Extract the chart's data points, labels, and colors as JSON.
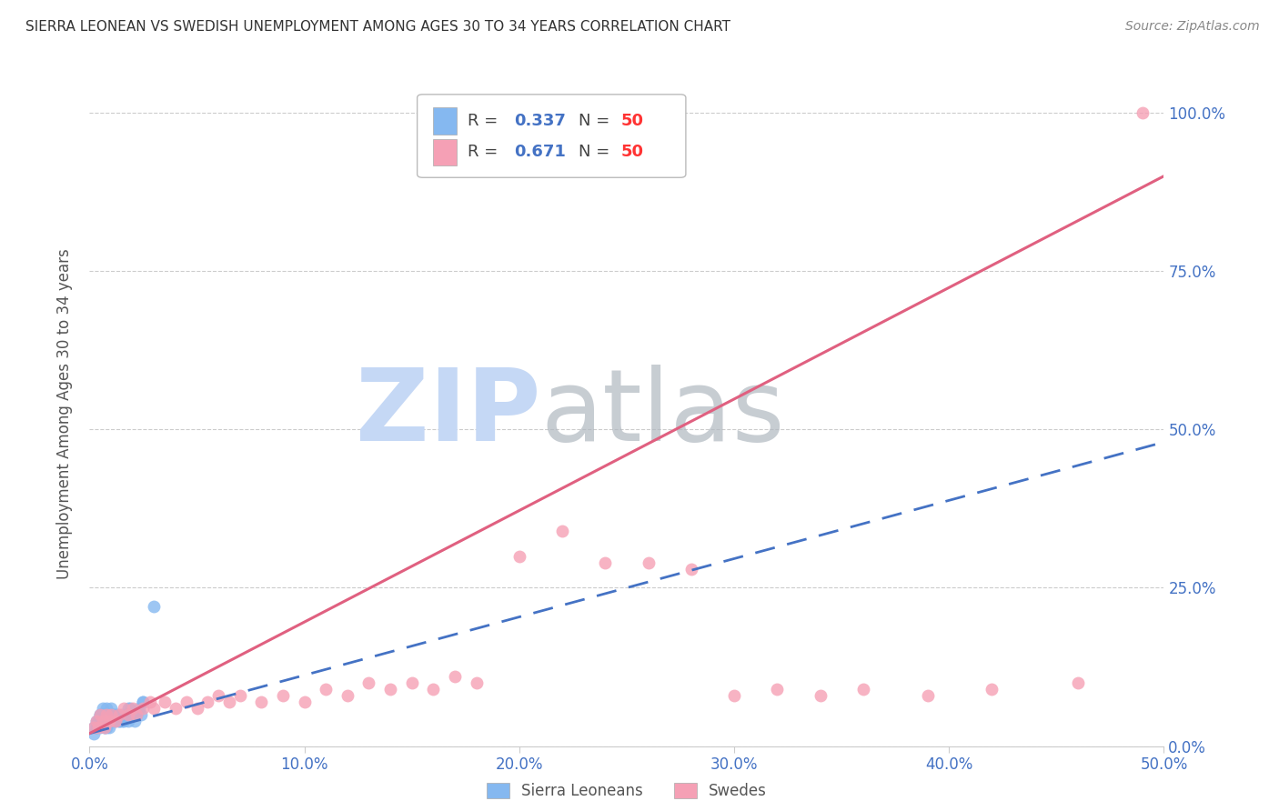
{
  "title": "SIERRA LEONEAN VS SWEDISH UNEMPLOYMENT AMONG AGES 30 TO 34 YEARS CORRELATION CHART",
  "source": "Source: ZipAtlas.com",
  "ylabel": "Unemployment Among Ages 30 to 34 years",
  "xlim": [
    0.0,
    0.5
  ],
  "ylim": [
    0.0,
    1.05
  ],
  "ytick_labels": [
    "0.0%",
    "25.0%",
    "50.0%",
    "75.0%",
    "100.0%"
  ],
  "ytick_values": [
    0.0,
    0.25,
    0.5,
    0.75,
    1.0
  ],
  "xtick_labels": [
    "0.0%",
    "10.0%",
    "20.0%",
    "30.0%",
    "40.0%",
    "50.0%"
  ],
  "xtick_values": [
    0.0,
    0.1,
    0.2,
    0.3,
    0.4,
    0.5
  ],
  "sl_color": "#85b8f0",
  "sw_color": "#f5a0b5",
  "sl_line_color": "#4472c4",
  "sw_line_color": "#e06080",
  "watermark_zip_color": "#c5d8f5",
  "watermark_atlas_color": "#b0b8c0",
  "sl_scatter_x": [
    0.002,
    0.003,
    0.004,
    0.005,
    0.005,
    0.006,
    0.006,
    0.007,
    0.007,
    0.008,
    0.008,
    0.009,
    0.009,
    0.01,
    0.01,
    0.011,
    0.012,
    0.013,
    0.014,
    0.015,
    0.016,
    0.017,
    0.018,
    0.019,
    0.02,
    0.021,
    0.022,
    0.023,
    0.024,
    0.025,
    0.003,
    0.004,
    0.006,
    0.008,
    0.01,
    0.012,
    0.015,
    0.018,
    0.021,
    0.025,
    0.003,
    0.005,
    0.007,
    0.009,
    0.011,
    0.014,
    0.002,
    0.004,
    0.006,
    0.03
  ],
  "sl_scatter_y": [
    0.02,
    0.03,
    0.04,
    0.03,
    0.05,
    0.04,
    0.06,
    0.03,
    0.05,
    0.04,
    0.06,
    0.05,
    0.03,
    0.04,
    0.06,
    0.05,
    0.04,
    0.05,
    0.04,
    0.05,
    0.04,
    0.05,
    0.04,
    0.06,
    0.05,
    0.04,
    0.05,
    0.06,
    0.05,
    0.07,
    0.03,
    0.04,
    0.05,
    0.03,
    0.04,
    0.05,
    0.04,
    0.06,
    0.05,
    0.07,
    0.04,
    0.05,
    0.03,
    0.04,
    0.05,
    0.04,
    0.03,
    0.04,
    0.05,
    0.22
  ],
  "sw_scatter_x": [
    0.002,
    0.003,
    0.004,
    0.005,
    0.006,
    0.007,
    0.008,
    0.009,
    0.01,
    0.012,
    0.014,
    0.016,
    0.018,
    0.02,
    0.022,
    0.025,
    0.028,
    0.03,
    0.035,
    0.04,
    0.045,
    0.05,
    0.055,
    0.06,
    0.065,
    0.07,
    0.08,
    0.09,
    0.1,
    0.11,
    0.12,
    0.13,
    0.14,
    0.15,
    0.16,
    0.17,
    0.18,
    0.2,
    0.22,
    0.24,
    0.26,
    0.28,
    0.3,
    0.32,
    0.34,
    0.36,
    0.39,
    0.42,
    0.46,
    0.49
  ],
  "sw_scatter_y": [
    0.03,
    0.04,
    0.03,
    0.05,
    0.04,
    0.03,
    0.05,
    0.04,
    0.05,
    0.04,
    0.05,
    0.06,
    0.05,
    0.06,
    0.05,
    0.06,
    0.07,
    0.06,
    0.07,
    0.06,
    0.07,
    0.06,
    0.07,
    0.08,
    0.07,
    0.08,
    0.07,
    0.08,
    0.07,
    0.09,
    0.08,
    0.1,
    0.09,
    0.1,
    0.09,
    0.11,
    0.1,
    0.3,
    0.34,
    0.29,
    0.29,
    0.28,
    0.08,
    0.09,
    0.08,
    0.09,
    0.08,
    0.09,
    0.1,
    1.0
  ],
  "sl_trend_x": [
    0.0,
    0.5
  ],
  "sl_trend_y": [
    0.02,
    0.48
  ],
  "sw_trend_x": [
    0.0,
    0.5
  ],
  "sw_trend_y": [
    0.02,
    0.9
  ]
}
